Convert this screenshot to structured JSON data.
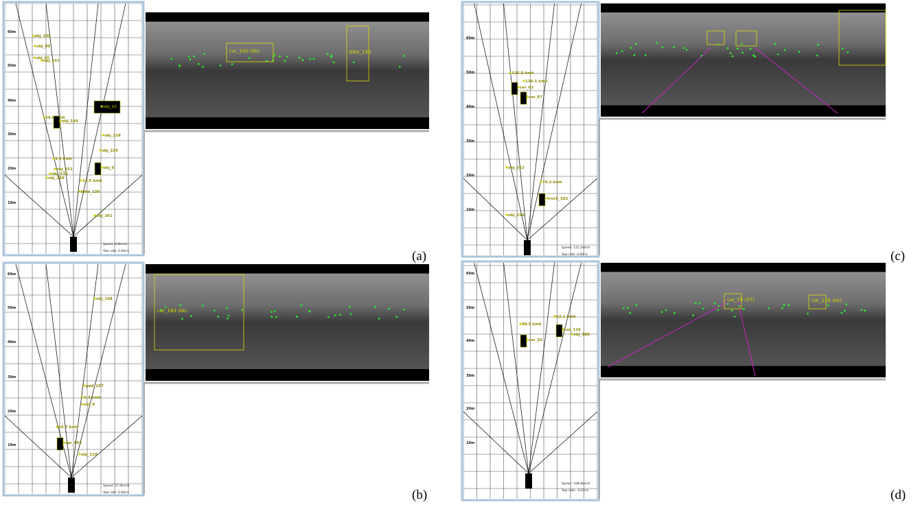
{
  "panels": [
    {
      "label": "(a)",
      "grid_labels": [
        "60m",
        "50m",
        "40m",
        "30m",
        "20m",
        "10m"
      ],
      "speed": "Speed: 0.0km/h",
      "yaw": "Yaw rate: 0.00r/s",
      "objects": [
        "obj_248",
        "obj_89",
        "obj_45",
        "obj_241",
        "obj_15",
        "24.6 kmh",
        "obj_184",
        "obj_228",
        "obj_229",
        "4.3 kmh",
        "obj_151",
        "obj_236",
        "obj_238",
        "obj_6",
        "15.5 kmh",
        "bike_130",
        "obj_261"
      ],
      "image_objects": [
        "car_100 (bk)",
        "bike_130"
      ]
    },
    {
      "label": "(b)",
      "grid_labels": [
        "60m",
        "50m",
        "40m",
        "30m",
        "20m",
        "10m"
      ],
      "speed": "Speed: 37.0km/h",
      "yaw": "Yaw rate: 0.00r/s",
      "objects": [
        "obj_148",
        "ped_157",
        "3.4 kmh",
        "obj_8",
        "26.7 kmh",
        "car_183",
        "obj_118"
      ],
      "image_objects": [
        "car_183 (bk)"
      ]
    },
    {
      "label": "(c)",
      "grid_labels": [
        "60m",
        "50m",
        "40m",
        "30m",
        "20m",
        "10m"
      ],
      "speed": "Speed: 115.2km/h",
      "yaw": "Yaw rate: 0.00r/s",
      "objects": [
        "125.8 kmh",
        "116.1 kmh",
        "car_62",
        "car_87",
        "obj_262",
        "78.2 kmh",
        "truck_182",
        "obj_214"
      ],
      "image_objects": []
    },
    {
      "label": "(d)",
      "grid_labels": [
        "60m",
        "50m",
        "40m",
        "30m",
        "20m",
        "10m"
      ],
      "speed": "Speed: 108.8km/h",
      "yaw": "Yaw rate: -0.03r/s",
      "objects": [
        "88.5 kmh",
        "car_55",
        "52.1 kmh",
        "car_116",
        "obj_188"
      ],
      "image_objects": [
        "car_55 (57)",
        "car_116 (bk)"
      ]
    }
  ]
}
